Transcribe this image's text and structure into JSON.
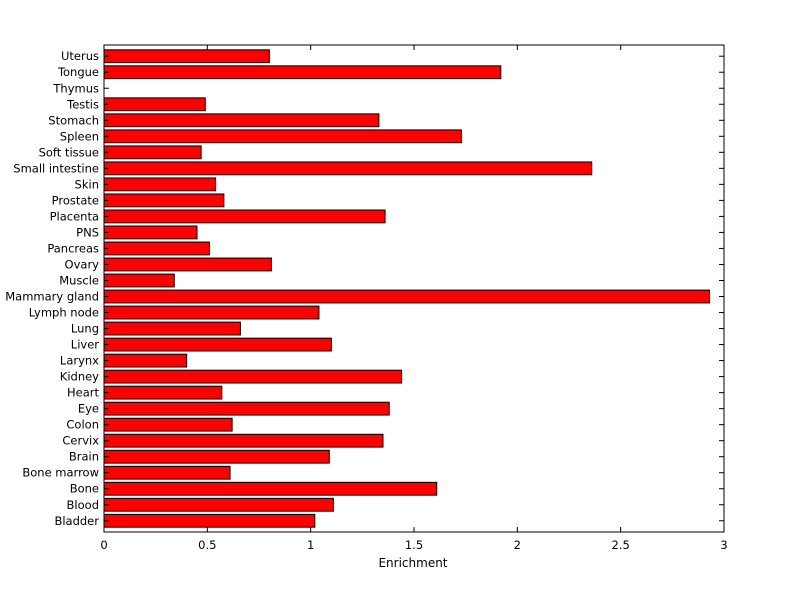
{
  "chart_data": {
    "type": "bar",
    "orientation": "horizontal",
    "title": "",
    "xlabel": "Enrichment",
    "ylabel": "",
    "xlim": [
      0,
      3
    ],
    "xticks": [
      0,
      0.5,
      1,
      1.5,
      2,
      2.5,
      3
    ],
    "xtick_labels": [
      "0",
      "0.5",
      "1",
      "1.5",
      "2",
      "2.5",
      "3"
    ],
    "grid": false,
    "legend": "none",
    "bar_color": "#ff0000",
    "edge_color": "#000000",
    "categories": [
      "Bladder",
      "Blood",
      "Bone",
      "Bone marrow",
      "Brain",
      "Cervix",
      "Colon",
      "Eye",
      "Heart",
      "Kidney",
      "Larynx",
      "Liver",
      "Lung",
      "Lymph node",
      "Mammary gland",
      "Muscle",
      "Ovary",
      "Pancreas",
      "PNS",
      "Placenta",
      "Prostate",
      "Skin",
      "Small intestine",
      "Soft tissue",
      "Spleen",
      "Stomach",
      "Testis",
      "Thymus",
      "Tongue",
      "Uterus"
    ],
    "values": [
      1.02,
      1.11,
      1.61,
      0.61,
      1.09,
      1.35,
      0.62,
      1.38,
      0.57,
      1.44,
      0.4,
      1.1,
      0.66,
      1.04,
      2.93,
      0.34,
      0.81,
      0.51,
      0.45,
      1.36,
      0.58,
      0.54,
      2.36,
      0.47,
      1.73,
      1.33,
      0.49,
      0.0,
      1.92,
      0.8
    ]
  }
}
